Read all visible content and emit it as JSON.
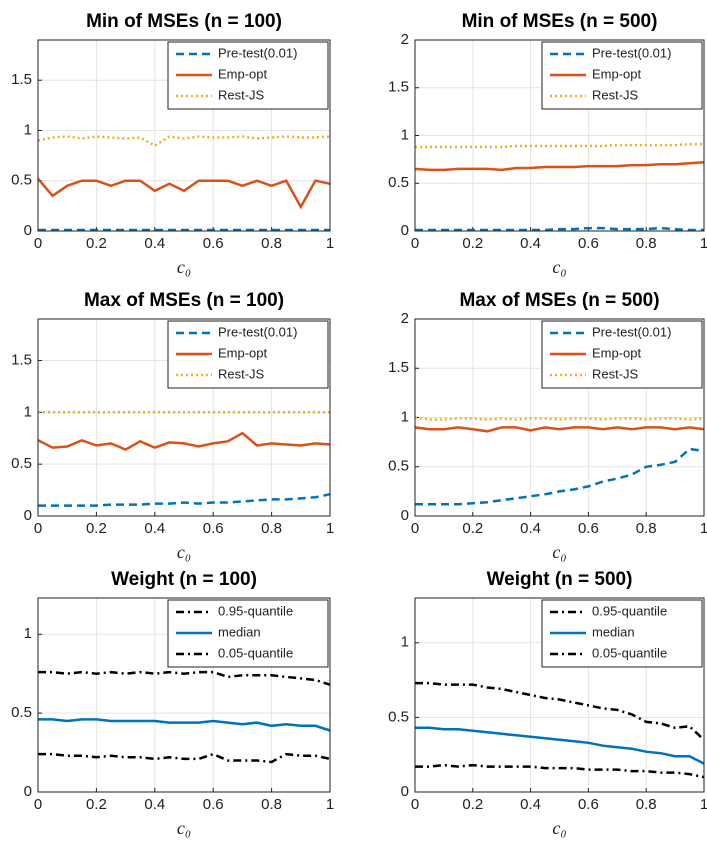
{
  "chart_data": [
    {
      "type": "line",
      "title": "Min of MSEs (n = 100)",
      "xlabel": "c₀",
      "x": [
        0,
        0.05,
        0.1,
        0.15,
        0.2,
        0.25,
        0.3,
        0.35,
        0.4,
        0.45,
        0.5,
        0.55,
        0.6,
        0.65,
        0.7,
        0.75,
        0.8,
        0.85,
        0.9,
        0.95,
        1
      ],
      "xlim": [
        0,
        1
      ],
      "xticks": [
        0,
        0.2,
        0.4,
        0.6,
        0.8,
        1
      ],
      "ylim": [
        0,
        1.9
      ],
      "yticks": [
        0,
        0.5,
        1,
        1.5
      ],
      "grid": true,
      "legend": "upper right",
      "series": [
        {
          "name": "Pre-test(0.01)",
          "color": "#0072BD",
          "style": "dashed",
          "values": [
            0.01,
            0.01,
            0.01,
            0.01,
            0.01,
            0.01,
            0.01,
            0.01,
            0.01,
            0.01,
            0.01,
            0.01,
            0.01,
            0.01,
            0.01,
            0.01,
            0.01,
            0.01,
            0.01,
            0.01,
            0.01
          ]
        },
        {
          "name": "Emp-opt",
          "color": "#D95319",
          "style": "solid",
          "values": [
            0.52,
            0.35,
            0.45,
            0.5,
            0.5,
            0.45,
            0.5,
            0.5,
            0.4,
            0.47,
            0.4,
            0.5,
            0.5,
            0.5,
            0.45,
            0.5,
            0.45,
            0.5,
            0.24,
            0.5,
            0.47
          ]
        },
        {
          "name": "Rest-JS",
          "color": "#EDB120",
          "style": "dotted",
          "values": [
            0.9,
            0.93,
            0.94,
            0.92,
            0.94,
            0.93,
            0.92,
            0.93,
            0.85,
            0.94,
            0.92,
            0.94,
            0.93,
            0.93,
            0.94,
            0.92,
            0.93,
            0.94,
            0.93,
            0.93,
            0.94
          ]
        }
      ]
    },
    {
      "type": "line",
      "title": "Min of MSEs (n = 500)",
      "xlabel": "c₀",
      "x": [
        0,
        0.05,
        0.1,
        0.15,
        0.2,
        0.25,
        0.3,
        0.35,
        0.4,
        0.45,
        0.5,
        0.55,
        0.6,
        0.65,
        0.7,
        0.75,
        0.8,
        0.85,
        0.9,
        0.95,
        1
      ],
      "xlim": [
        0,
        1
      ],
      "xticks": [
        0,
        0.2,
        0.4,
        0.6,
        0.8,
        1
      ],
      "ylim": [
        0,
        2
      ],
      "yticks": [
        0,
        0.5,
        1,
        1.5,
        2
      ],
      "grid": true,
      "legend": "upper right",
      "series": [
        {
          "name": "Pre-test(0.01)",
          "color": "#0072BD",
          "style": "dashed",
          "values": [
            0.01,
            0.01,
            0.01,
            0.01,
            0.01,
            0.01,
            0.01,
            0.01,
            0.01,
            0.01,
            0.02,
            0.02,
            0.03,
            0.03,
            0.02,
            0.02,
            0.02,
            0.03,
            0.02,
            0.01,
            0.01
          ]
        },
        {
          "name": "Emp-opt",
          "color": "#D95319",
          "style": "solid",
          "values": [
            0.65,
            0.64,
            0.64,
            0.65,
            0.65,
            0.65,
            0.64,
            0.66,
            0.66,
            0.67,
            0.67,
            0.67,
            0.68,
            0.68,
            0.68,
            0.69,
            0.69,
            0.7,
            0.7,
            0.71,
            0.72
          ]
        },
        {
          "name": "Rest-JS",
          "color": "#EDB120",
          "style": "dotted",
          "values": [
            0.88,
            0.88,
            0.88,
            0.88,
            0.88,
            0.88,
            0.88,
            0.89,
            0.89,
            0.89,
            0.89,
            0.89,
            0.89,
            0.89,
            0.9,
            0.9,
            0.9,
            0.9,
            0.9,
            0.91,
            0.91
          ]
        }
      ]
    },
    {
      "type": "line",
      "title": "Max of MSEs (n = 100)",
      "xlabel": "c₀",
      "x": [
        0,
        0.05,
        0.1,
        0.15,
        0.2,
        0.25,
        0.3,
        0.35,
        0.4,
        0.45,
        0.5,
        0.55,
        0.6,
        0.65,
        0.7,
        0.75,
        0.8,
        0.85,
        0.9,
        0.95,
        1
      ],
      "xlim": [
        0,
        1
      ],
      "xticks": [
        0,
        0.2,
        0.4,
        0.6,
        0.8,
        1
      ],
      "ylim": [
        0,
        1.9
      ],
      "yticks": [
        0,
        0.5,
        1,
        1.5
      ],
      "grid": true,
      "legend": "upper right",
      "series": [
        {
          "name": "Pre-test(0.01)",
          "color": "#0072BD",
          "style": "dashed",
          "values": [
            0.1,
            0.1,
            0.1,
            0.1,
            0.1,
            0.11,
            0.11,
            0.11,
            0.12,
            0.12,
            0.13,
            0.12,
            0.13,
            0.13,
            0.14,
            0.15,
            0.16,
            0.16,
            0.17,
            0.18,
            0.21
          ]
        },
        {
          "name": "Emp-opt",
          "color": "#D95319",
          "style": "solid",
          "values": [
            0.73,
            0.66,
            0.67,
            0.73,
            0.68,
            0.7,
            0.64,
            0.72,
            0.66,
            0.71,
            0.7,
            0.67,
            0.7,
            0.72,
            0.8,
            0.68,
            0.7,
            0.69,
            0.68,
            0.7,
            0.69
          ]
        },
        {
          "name": "Rest-JS",
          "color": "#EDB120",
          "style": "dotted",
          "values": [
            1,
            1,
            1,
            1,
            1,
            1,
            1,
            1,
            1,
            1,
            1,
            1,
            1,
            1,
            1,
            1,
            1,
            1,
            1,
            1,
            1
          ]
        }
      ]
    },
    {
      "type": "line",
      "title": "Max of MSEs (n = 500)",
      "xlabel": "c₀",
      "x": [
        0,
        0.05,
        0.1,
        0.15,
        0.2,
        0.25,
        0.3,
        0.35,
        0.4,
        0.45,
        0.5,
        0.55,
        0.6,
        0.65,
        0.7,
        0.75,
        0.8,
        0.85,
        0.9,
        0.95,
        1
      ],
      "xlim": [
        0,
        1
      ],
      "xticks": [
        0,
        0.2,
        0.4,
        0.6,
        0.8,
        1
      ],
      "ylim": [
        0,
        2
      ],
      "yticks": [
        0,
        0.5,
        1,
        1.5,
        2
      ],
      "grid": true,
      "legend": "upper right",
      "series": [
        {
          "name": "Pre-test(0.01)",
          "color": "#0072BD",
          "style": "dashed",
          "values": [
            0.12,
            0.12,
            0.12,
            0.12,
            0.13,
            0.14,
            0.16,
            0.18,
            0.2,
            0.22,
            0.25,
            0.27,
            0.3,
            0.35,
            0.38,
            0.42,
            0.5,
            0.52,
            0.55,
            0.68,
            0.66
          ]
        },
        {
          "name": "Emp-opt",
          "color": "#D95319",
          "style": "solid",
          "values": [
            0.9,
            0.88,
            0.88,
            0.9,
            0.88,
            0.86,
            0.9,
            0.9,
            0.87,
            0.9,
            0.88,
            0.9,
            0.9,
            0.88,
            0.9,
            0.88,
            0.9,
            0.9,
            0.88,
            0.9,
            0.88
          ]
        },
        {
          "name": "Rest-JS",
          "color": "#EDB120",
          "style": "dotted",
          "values": [
            1,
            0.98,
            0.98,
            0.99,
            0.99,
            0.98,
            0.99,
            0.98,
            0.99,
            0.99,
            0.98,
            0.99,
            0.99,
            0.98,
            0.99,
            0.99,
            0.98,
            0.99,
            0.99,
            0.98,
            0.99
          ]
        }
      ]
    },
    {
      "type": "line",
      "title": "Weight (n = 100)",
      "xlabel": "c₀",
      "x": [
        0,
        0.05,
        0.1,
        0.15,
        0.2,
        0.25,
        0.3,
        0.35,
        0.4,
        0.45,
        0.5,
        0.55,
        0.6,
        0.65,
        0.7,
        0.75,
        0.8,
        0.85,
        0.9,
        0.95,
        1
      ],
      "xlim": [
        0,
        1
      ],
      "xticks": [
        0,
        0.2,
        0.4,
        0.6,
        0.8,
        1
      ],
      "ylim": [
        0,
        1.23
      ],
      "yticks": [
        0,
        0.5,
        1
      ],
      "grid": true,
      "legend": "upper right",
      "series": [
        {
          "name": "0.95-quantile",
          "color": "#000000",
          "style": "dashdot",
          "values": [
            0.76,
            0.76,
            0.75,
            0.76,
            0.75,
            0.76,
            0.75,
            0.76,
            0.75,
            0.76,
            0.75,
            0.76,
            0.76,
            0.73,
            0.74,
            0.74,
            0.74,
            0.73,
            0.72,
            0.71,
            0.68
          ]
        },
        {
          "name": "median",
          "color": "#0072BD",
          "style": "solid",
          "values": [
            0.46,
            0.46,
            0.45,
            0.46,
            0.46,
            0.45,
            0.45,
            0.45,
            0.45,
            0.44,
            0.44,
            0.44,
            0.45,
            0.44,
            0.43,
            0.44,
            0.42,
            0.43,
            0.42,
            0.42,
            0.39
          ]
        },
        {
          "name": "0.05-quantile",
          "color": "#000000",
          "style": "dashdot",
          "values": [
            0.24,
            0.24,
            0.23,
            0.23,
            0.22,
            0.23,
            0.22,
            0.22,
            0.21,
            0.22,
            0.21,
            0.21,
            0.24,
            0.2,
            0.2,
            0.2,
            0.19,
            0.24,
            0.23,
            0.23,
            0.21
          ]
        }
      ]
    },
    {
      "type": "line",
      "title": "Weight (n = 500)",
      "xlabel": "c₀",
      "x": [
        0,
        0.05,
        0.1,
        0.15,
        0.2,
        0.25,
        0.3,
        0.35,
        0.4,
        0.45,
        0.5,
        0.55,
        0.6,
        0.65,
        0.7,
        0.75,
        0.8,
        0.85,
        0.9,
        0.95,
        1
      ],
      "xlim": [
        0,
        1
      ],
      "xticks": [
        0,
        0.2,
        0.4,
        0.6,
        0.8,
        1
      ],
      "ylim": [
        0,
        1.3
      ],
      "yticks": [
        0,
        0.5,
        1
      ],
      "grid": true,
      "legend": "upper right",
      "series": [
        {
          "name": "0.95-quantile",
          "color": "#000000",
          "style": "dashdot",
          "values": [
            0.73,
            0.73,
            0.72,
            0.72,
            0.72,
            0.7,
            0.69,
            0.67,
            0.65,
            0.63,
            0.62,
            0.6,
            0.58,
            0.56,
            0.55,
            0.52,
            0.47,
            0.46,
            0.43,
            0.44,
            0.35
          ]
        },
        {
          "name": "median",
          "color": "#0072BD",
          "style": "solid",
          "values": [
            0.43,
            0.43,
            0.42,
            0.42,
            0.41,
            0.4,
            0.39,
            0.38,
            0.37,
            0.36,
            0.35,
            0.34,
            0.33,
            0.31,
            0.3,
            0.29,
            0.27,
            0.26,
            0.24,
            0.24,
            0.19
          ]
        },
        {
          "name": "0.05-quantile",
          "color": "#000000",
          "style": "dashdot",
          "values": [
            0.17,
            0.17,
            0.18,
            0.17,
            0.18,
            0.17,
            0.17,
            0.17,
            0.17,
            0.16,
            0.16,
            0.16,
            0.15,
            0.15,
            0.15,
            0.14,
            0.14,
            0.13,
            0.13,
            0.12,
            0.1
          ]
        }
      ]
    }
  ]
}
